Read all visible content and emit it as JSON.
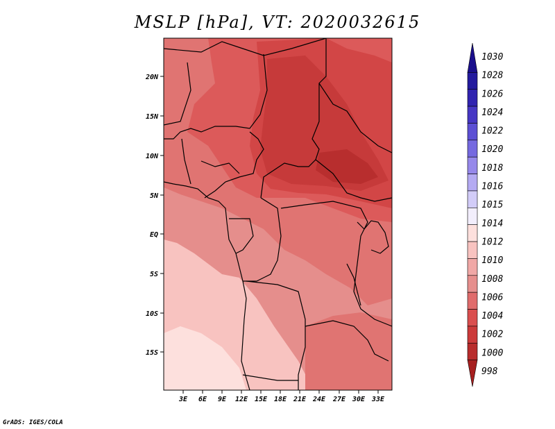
{
  "title": "MSLP [hPa], VT: 2020032615",
  "credit": "GrADS: IGES/COLA",
  "lat_labels": [
    "20N",
    "15N",
    "10N",
    "5N",
    "EQ",
    "5S",
    "10S",
    "15S"
  ],
  "lon_labels": [
    "3E",
    "6E",
    "9E",
    "12E",
    "15E",
    "18E",
    "21E",
    "24E",
    "27E",
    "30E",
    "33E"
  ],
  "colorbar": {
    "levels": [
      "1030",
      "1028",
      "1026",
      "1024",
      "1022",
      "1020",
      "1018",
      "1016",
      "1015",
      "1014",
      "1012",
      "1010",
      "1008",
      "1006",
      "1004",
      "1002",
      "1000",
      "998"
    ],
    "colors": [
      "#1a0f8c",
      "#231a9e",
      "#3023b0",
      "#4636c4",
      "#5c4fd4",
      "#7569e0",
      "#9688ea",
      "#b4aaf2",
      "#d2ccf8",
      "#f2eefc",
      "#fde0dd",
      "#f8c3c0",
      "#f0a8a6",
      "#e68f8d",
      "#e06c6c",
      "#da4e4e",
      "#cc3a3a",
      "#b82c2c",
      "#a61f1f"
    ]
  },
  "map_colors": {
    "p1016": "#fde0dd",
    "p1012": "#f8c3c0",
    "p1010": "#f2adab",
    "p1008": "#e58e8c",
    "p1006": "#e07472",
    "p1004": "#dc5a5a",
    "p1002": "#d24646",
    "p1000": "#c63a3a",
    "p998": "#b82e2e"
  }
}
